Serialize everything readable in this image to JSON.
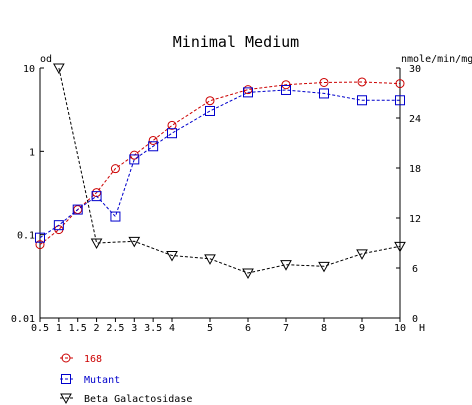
{
  "chart_data": {
    "type": "line",
    "title": "Minimal Medium",
    "xlabel": "H",
    "ylabel_left": "od",
    "ylabel_right": "nmole/min/mg",
    "left_axis": {
      "scale": "log",
      "range": [
        0.01,
        10
      ],
      "ticks": [
        0.01,
        0.1,
        1,
        10
      ],
      "tick_labels": [
        "0.01",
        "0.1",
        "1",
        "10"
      ]
    },
    "right_axis": {
      "scale": "linear",
      "range": [
        0,
        30
      ],
      "ticks": [
        0,
        6,
        12,
        18,
        24,
        30
      ],
      "tick_labels": [
        "0",
        "6",
        "12",
        "18",
        "24",
        "30"
      ]
    },
    "x_axis": {
      "range": [
        0.5,
        10
      ],
      "ticks": [
        0.5,
        1,
        1.5,
        2,
        2.5,
        3,
        3.5,
        4,
        5,
        6,
        7,
        8,
        9,
        10
      ],
      "tick_labels": [
        "0.5",
        "1",
        "1.5",
        "2",
        "2.5",
        "3",
        "3.5",
        "4",
        "5",
        "6",
        "7",
        "8",
        "9",
        "10"
      ]
    },
    "legend_position": "bottom-left",
    "grid": false,
    "series": [
      {
        "name": "168",
        "axis": "left",
        "marker": "circle",
        "color": "#cc0000",
        "x": [
          0.5,
          1,
          1.5,
          2,
          2.5,
          3,
          3.5,
          4,
          5,
          6,
          7,
          8,
          9,
          10
        ],
        "y": [
          0.076,
          0.115,
          0.2,
          0.32,
          0.62,
          0.9,
          1.35,
          2.05,
          4.05,
          5.5,
          6.3,
          6.7,
          6.8,
          6.5
        ]
      },
      {
        "name": "Mutant",
        "axis": "left",
        "marker": "square",
        "color": "#0000cc",
        "x": [
          0.5,
          1,
          1.5,
          2,
          2.5,
          3,
          3.5,
          4,
          5,
          6,
          7,
          8,
          9,
          10
        ],
        "y": [
          0.092,
          0.13,
          0.2,
          0.29,
          0.165,
          0.8,
          1.15,
          1.65,
          3.05,
          5.1,
          5.45,
          4.95,
          4.1,
          4.1
        ]
      },
      {
        "name": "Beta Galactosidase",
        "axis": "right",
        "marker": "triangle-down",
        "color": "#000000",
        "x": [
          1,
          2,
          3,
          4,
          5,
          6,
          7,
          8,
          9,
          10
        ],
        "y": [
          30,
          9,
          9.2,
          7.5,
          7.1,
          5.4,
          6.4,
          6.2,
          7.7,
          8.6
        ]
      }
    ]
  }
}
